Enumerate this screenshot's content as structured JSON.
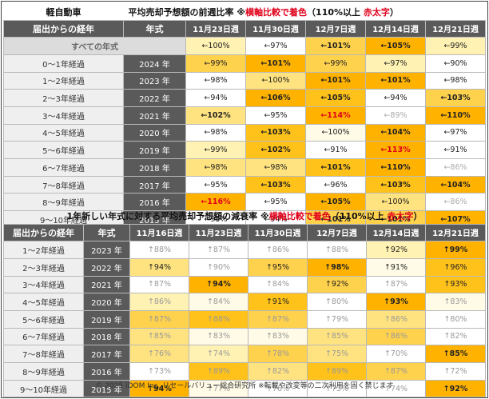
{
  "t1": {
    "label": "軽自動車",
    "title_main": "平均売却予想額の前週比率",
    "title_note_prefix": "※",
    "title_note_red": "横軸比較で着色",
    "title_note_suffix": "（110%以上",
    "title_note_red2": "赤太字",
    "title_note_end": "）",
    "col_age": "届出からの経年",
    "col_year": "年式",
    "weeks": [
      "11月23日週",
      "11月30日週",
      "12月7日週",
      "12月14日週",
      "12月21日週"
    ],
    "all_label": "すべての年式",
    "all_values": [
      "←100%",
      "←97%",
      "←101%",
      "←105%",
      "←99%"
    ],
    "rows": [
      {
        "age": "0～1年経過",
        "year": "2024 年",
        "cells": [
          "←99%",
          "←101%",
          "←99%",
          "←97%",
          "←90%"
        ]
      },
      {
        "age": "1～2年経過",
        "year": "2023 年",
        "cells": [
          "←98%",
          "←100%",
          "←101%",
          "←101%",
          "←98%"
        ]
      },
      {
        "age": "2～3年経過",
        "year": "2022 年",
        "cells": [
          "←94%",
          "←106%",
          "←105%",
          "←94%",
          "←103%"
        ]
      },
      {
        "age": "3～4年経過",
        "year": "2021 年",
        "cells": [
          "←102%",
          "←95%",
          "←114%",
          "←89%",
          "←110%"
        ]
      },
      {
        "age": "4～5年経過",
        "year": "2020 年",
        "cells": [
          "←98%",
          "←103%",
          "←100%",
          "←104%",
          "←97%"
        ]
      },
      {
        "age": "5～6年経過",
        "year": "2019 年",
        "cells": [
          "←99%",
          "←102%",
          "←91%",
          "←113%",
          "←91%"
        ]
      },
      {
        "age": "6～7年経過",
        "year": "2018 年",
        "cells": [
          "←98%",
          "←98%",
          "←101%",
          "←110%",
          "←86%"
        ]
      },
      {
        "age": "7～8年経過",
        "year": "2017 年",
        "cells": [
          "←95%",
          "←103%",
          "←96%",
          "←103%",
          "←104%"
        ]
      },
      {
        "age": "8～9年経過",
        "year": "2016 年",
        "cells": [
          "←116%",
          "←95%",
          "←105%",
          "←100%",
          "←86%"
        ]
      },
      {
        "age": "9～10年経過",
        "year": "2015 年",
        "cells": [
          "←95%",
          "←94%",
          "←101%",
          "←101%",
          "←107%"
        ]
      }
    ]
  },
  "t2": {
    "title_main": "1年新しい年式に対する平均売却予想額の減衰率",
    "title_note_prefix": "※",
    "title_note_red": "横軸比較で着色",
    "title_note_suffix": "（110%以上",
    "title_note_red2": "赤太字",
    "title_note_end": "）",
    "col_age": "届出からの経年",
    "col_year": "年式",
    "weeks": [
      "11月16日週",
      "11月23日週",
      "11月30日週",
      "12月7日週",
      "12月14日週",
      "12月21日週"
    ],
    "rows": [
      {
        "age": "1～2年経過",
        "year": "2023 年",
        "cells": [
          "↑88%",
          "↑87%",
          "↑86%",
          "↑88%",
          "↑92%",
          "↑99%"
        ]
      },
      {
        "age": "2～3年経過",
        "year": "2022 年",
        "cells": [
          "↑94%",
          "↑90%",
          "↑95%",
          "↑98%",
          "↑91%",
          "↑96%"
        ]
      },
      {
        "age": "3～4年経過",
        "year": "2021 年",
        "cells": [
          "↑87%",
          "↑94%",
          "↑84%",
          "↑92%",
          "↑87%",
          "↑93%"
        ]
      },
      {
        "age": "4～5年経過",
        "year": "2020 年",
        "cells": [
          "↑86%",
          "↑84%",
          "↑91%",
          "↑80%",
          "↑93%",
          "↑83%"
        ]
      },
      {
        "age": "5～6年経過",
        "year": "2019 年",
        "cells": [
          "↑87%",
          "↑88%",
          "↑87%",
          "↑79%",
          "↑86%",
          "↑80%"
        ]
      },
      {
        "age": "6～7年経過",
        "year": "2018 年",
        "cells": [
          "↑85%",
          "↑83%",
          "↑83%",
          "↑85%",
          "↑86%",
          "↑82%"
        ]
      },
      {
        "age": "7～8年経過",
        "year": "2017 年",
        "cells": [
          "↑76%",
          "↑74%",
          "↑78%",
          "↑75%",
          "↑70%",
          "↑85%"
        ]
      },
      {
        "age": "8～9年経過",
        "year": "2016 年",
        "cells": [
          "↑73%",
          "↑89%",
          "↑82%",
          "↑89%",
          "↑87%",
          "↑72%"
        ]
      },
      {
        "age": "9～10年経過",
        "year": "2015 年",
        "cells": [
          "↑94%",
          "↑77%",
          "↑76%",
          "↑73%",
          "↑74%",
          "↑92%"
        ]
      }
    ]
  },
  "footer": "© 2025 IDOM Inc. リセールバリュー総合研究所 ※転載や改変等の二次利用を固く禁じます",
  "colors": {
    "header": "#5a5a5a",
    "highlight_red": "#e0001a",
    "heat_max": "#ffb200",
    "heat_min": "#ffffff"
  }
}
